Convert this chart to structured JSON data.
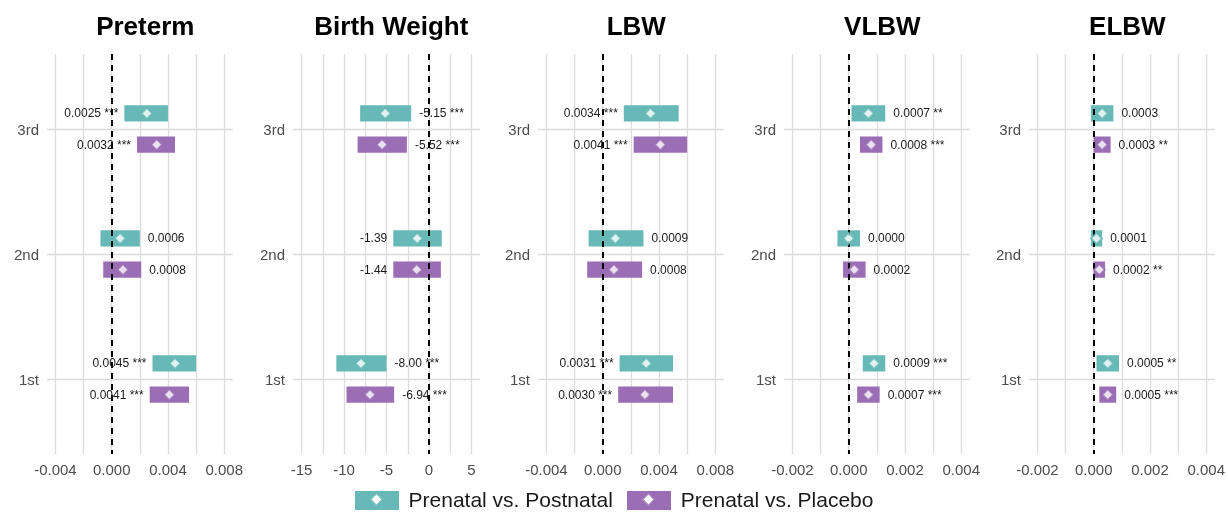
{
  "chart_data": [
    {
      "type": "scatter",
      "orientation": "horizontal",
      "title": "Preterm",
      "categories": [
        "3rd",
        "2nd",
        "1st"
      ],
      "xlim": [
        -0.0046,
        0.0086
      ],
      "xticks": [
        -0.004,
        {
          "value": -0.002,
          "label": null
        },
        {
          "value": 0,
          "label": "0.000"
        },
        {
          "value": 0.002,
          "label": null
        },
        0.004,
        {
          "value": 0.006,
          "label": null
        },
        0.008
      ],
      "grid": true,
      "legend": "bottom",
      "marker": "diamond",
      "ref_lines": [
        {
          "axis": "x",
          "value": 0,
          "line_style": "dashed",
          "color": "#000000"
        }
      ],
      "series": [
        {
          "name": "Prenatal vs. Postnatal",
          "color": "#66b9b6",
          "values": [
            0.0025,
            0.0006,
            0.0045
          ],
          "errors": [
            [
              0.0009,
              0.004
            ],
            [
              -0.0008,
              0.002
            ],
            [
              0.0029,
              0.006
            ]
          ],
          "value_labels": [
            "0.0025 ***",
            "0.0006",
            "0.0045 ***"
          ]
        },
        {
          "name": "Prenatal vs. Placebo",
          "color": "#9b6db5",
          "values": [
            0.0032,
            0.0008,
            0.0041
          ],
          "errors": [
            [
              0.0018,
              0.0045
            ],
            [
              -0.0006,
              0.0021
            ],
            [
              0.0027,
              0.0055
            ]
          ],
          "value_labels": [
            "0.0032 ***",
            "0.0008",
            "0.0041 ***"
          ]
        }
      ]
    },
    {
      "type": "scatter",
      "orientation": "horizontal",
      "title": "Birth Weight",
      "categories": [
        "3rd",
        "2nd",
        "1st"
      ],
      "xlim": [
        -16,
        6
      ],
      "xticks": [
        -15,
        {
          "value": -12.5,
          "label": null
        },
        -10,
        {
          "value": -7.5,
          "label": null
        },
        -5,
        {
          "value": -2.5,
          "label": null
        },
        0,
        {
          "value": 2.5,
          "label": null
        },
        5
      ],
      "grid": true,
      "legend": "bottom",
      "marker": "diamond",
      "ref_lines": [
        {
          "axis": "x",
          "value": 0,
          "line_style": "dashed",
          "color": "#000000"
        }
      ],
      "series": [
        {
          "name": "Prenatal vs. Postnatal",
          "color": "#66b9b6",
          "values": [
            -5.15,
            -1.39,
            -8.0
          ],
          "errors": [
            [
              -8.1,
              -2.1
            ],
            [
              -4.2,
              1.5
            ],
            [
              -10.9,
              -5.0
            ]
          ],
          "value_labels": [
            "-5.15 ***",
            "-1.39",
            "-8.00 ***"
          ]
        },
        {
          "name": "Prenatal vs. Placebo",
          "color": "#9b6db5",
          "values": [
            -5.52,
            -1.44,
            -6.94
          ],
          "errors": [
            [
              -8.4,
              -2.6
            ],
            [
              -4.2,
              1.4
            ],
            [
              -9.7,
              -4.1
            ]
          ],
          "value_labels": [
            "-5.52 ***",
            "-1.44",
            "-6.94 ***"
          ]
        }
      ]
    },
    {
      "type": "scatter",
      "orientation": "horizontal",
      "title": "LBW",
      "categories": [
        "3rd",
        "2nd",
        "1st"
      ],
      "xlim": [
        -0.0046,
        0.0086
      ],
      "xticks": [
        -0.004,
        {
          "value": -0.002,
          "label": null
        },
        {
          "value": 0,
          "label": "0.000"
        },
        {
          "value": 0.002,
          "label": null
        },
        0.004,
        {
          "value": 0.006,
          "label": null
        },
        0.008
      ],
      "grid": true,
      "legend": "bottom",
      "marker": "diamond",
      "ref_lines": [
        {
          "axis": "x",
          "value": 0,
          "line_style": "dashed",
          "color": "#000000"
        }
      ],
      "series": [
        {
          "name": "Prenatal vs. Postnatal",
          "color": "#66b9b6",
          "values": [
            0.0034,
            0.0009,
            0.0031
          ],
          "errors": [
            [
              0.0015,
              0.0054
            ],
            [
              -0.001,
              0.0029
            ],
            [
              0.0012,
              0.005
            ]
          ],
          "value_labels": [
            "0.0034 ***",
            "0.0009",
            "0.0031 ***"
          ]
        },
        {
          "name": "Prenatal vs. Placebo",
          "color": "#9b6db5",
          "values": [
            0.0041,
            0.0008,
            0.003
          ],
          "errors": [
            [
              0.0022,
              0.006
            ],
            [
              -0.0011,
              0.0028
            ],
            [
              0.0011,
              0.005
            ]
          ],
          "value_labels": [
            "0.0041 ***",
            "0.0008",
            "0.0030 ***"
          ]
        }
      ]
    },
    {
      "type": "scatter",
      "orientation": "horizontal",
      "title": "VLBW",
      "categories": [
        "3rd",
        "2nd",
        "1st"
      ],
      "xlim": [
        -0.0023,
        0.0043
      ],
      "xticks": [
        -0.002,
        {
          "value": -0.001,
          "label": null
        },
        {
          "value": 0,
          "label": "0.000"
        },
        {
          "value": 0.001,
          "label": null
        },
        0.002,
        {
          "value": 0.003,
          "label": null
        },
        0.004
      ],
      "grid": true,
      "legend": "bottom",
      "marker": "diamond",
      "ref_lines": [
        {
          "axis": "x",
          "value": 0,
          "line_style": "dashed",
          "color": "#000000"
        }
      ],
      "series": [
        {
          "name": "Prenatal vs. Postnatal",
          "color": "#66b9b6",
          "values": [
            0.0007,
            0.0,
            0.0009
          ],
          "errors": [
            [
              0.0001,
              0.0013
            ],
            [
              -0.0004,
              0.0004
            ],
            [
              0.0005,
              0.0013
            ]
          ],
          "value_labels": [
            "0.0007 **",
            "0.0000",
            "0.0009 ***"
          ]
        },
        {
          "name": "Prenatal vs. Placebo",
          "color": "#9b6db5",
          "values": [
            0.0008,
            0.0002,
            0.0007
          ],
          "errors": [
            [
              0.0004,
              0.0012
            ],
            [
              -0.0002,
              0.0006
            ],
            [
              0.0003,
              0.0011
            ]
          ],
          "value_labels": [
            "0.0008 ***",
            "0.0002",
            "0.0007 ***"
          ]
        }
      ]
    },
    {
      "type": "scatter",
      "orientation": "horizontal",
      "title": "ELBW",
      "categories": [
        "3rd",
        "2nd",
        "1st"
      ],
      "xlim": [
        -0.0023,
        0.0043
      ],
      "xticks": [
        -0.002,
        {
          "value": -0.001,
          "label": null
        },
        {
          "value": 0,
          "label": "0.000"
        },
        {
          "value": 0.001,
          "label": null
        },
        0.002,
        {
          "value": 0.003,
          "label": null
        },
        0.004
      ],
      "grid": true,
      "legend": "bottom",
      "marker": "diamond",
      "ref_lines": [
        {
          "axis": "x",
          "value": 0,
          "line_style": "dashed",
          "color": "#000000"
        }
      ],
      "series": [
        {
          "name": "Prenatal vs. Postnatal",
          "color": "#66b9b6",
          "values": [
            0.0003,
            0.0001,
            0.0005
          ],
          "errors": [
            [
              -0.0001,
              0.0007
            ],
            [
              -0.0001,
              0.0003
            ],
            [
              0.0001,
              0.0009
            ]
          ],
          "value_labels": [
            "0.0003",
            "0.0001",
            "0.0005 **"
          ]
        },
        {
          "name": "Prenatal vs. Placebo",
          "color": "#9b6db5",
          "values": [
            0.0003,
            0.0002,
            0.0005
          ],
          "errors": [
            [
              0.0,
              0.0006
            ],
            [
              0.0,
              0.0004
            ],
            [
              0.0002,
              0.0008
            ]
          ],
          "value_labels": [
            "0.0003 **",
            "0.0002 **",
            "0.0005 ***"
          ]
        }
      ]
    }
  ]
}
